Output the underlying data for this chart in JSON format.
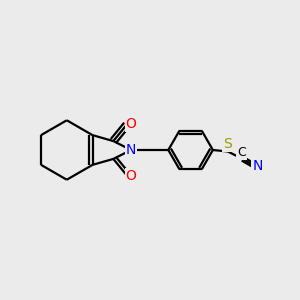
{
  "bg_color": "#ebebeb",
  "bond_color": "#000000",
  "bond_width": 1.6,
  "atom_colors": {
    "O": "#ff0000",
    "N": "#0000ff",
    "S": "#999900",
    "C": "#000000"
  },
  "figsize": [
    3.0,
    3.0
  ],
  "dpi": 100
}
